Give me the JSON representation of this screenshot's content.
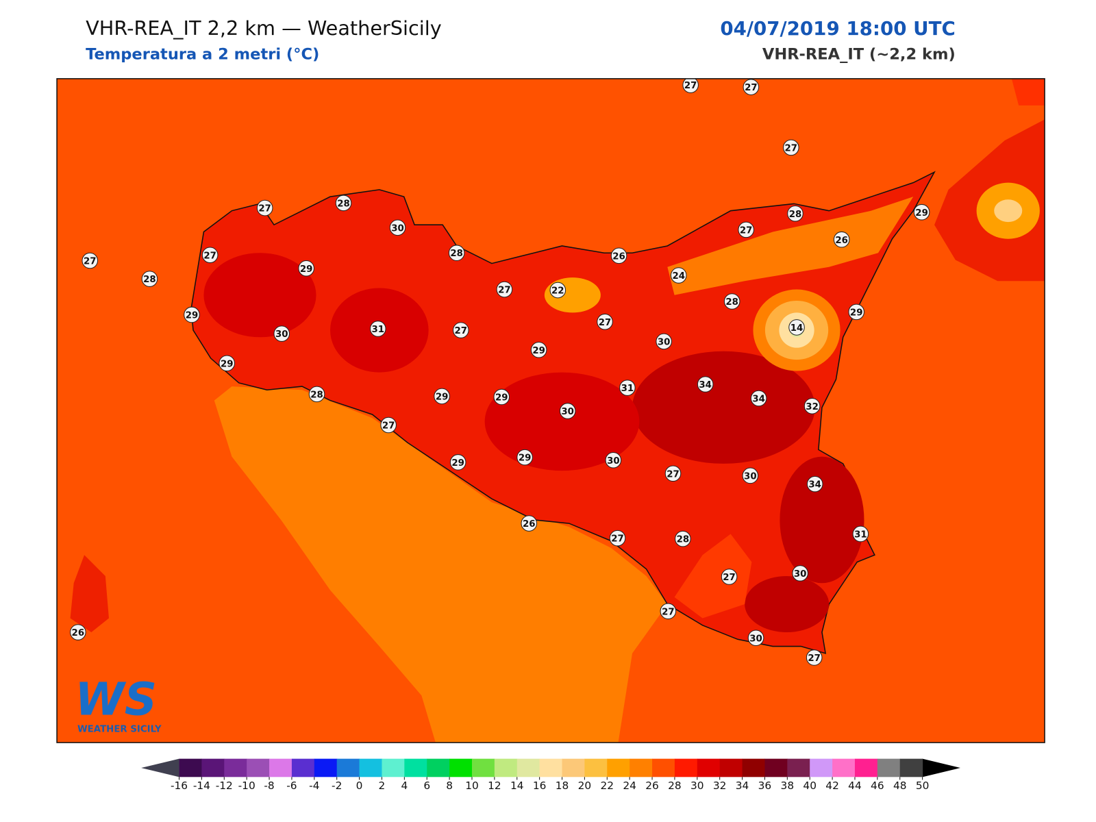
{
  "header": {
    "title": "VHR-REA_IT 2,2 km — WeatherSicily",
    "subtitle": "Temperatura a 2 metri (°C)",
    "datetime": "04/07/2019 18:00 UTC",
    "model": "VHR-REA_IT (~2,2 km)"
  },
  "stations": [
    27,
    27,
    27,
    28,
    29,
    27,
    26,
    26,
    24,
    28,
    29,
    14,
    27,
    28,
    30,
    28,
    27,
    29,
    27,
    28,
    29,
    30,
    31,
    27,
    22,
    27,
    27,
    29,
    30,
    29,
    28,
    29,
    29,
    30,
    31,
    34,
    34,
    32,
    27,
    29,
    29,
    30,
    27,
    30,
    34,
    26,
    27,
    28,
    31,
    30,
    27,
    27,
    30,
    27,
    26
  ],
  "colorbar": {
    "ticks": [
      -16,
      -14,
      -12,
      -10,
      -8,
      -6,
      -4,
      -2,
      0,
      2,
      4,
      6,
      8,
      10,
      12,
      14,
      16,
      18,
      20,
      22,
      24,
      26,
      28,
      30,
      32,
      34,
      36,
      38,
      40,
      42,
      44,
      46,
      48,
      50
    ],
    "colors": [
      "#3d0a50",
      "#5a1577",
      "#7a2c9a",
      "#9b4fb5",
      "#dc78e8",
      "#5a2fd0",
      "#0a1af5",
      "#1b7ad8",
      "#14c0e0",
      "#5ef0d0",
      "#00e0a0",
      "#00d060",
      "#00e000",
      "#70e040",
      "#c0ea80",
      "#e0e8a0",
      "#ffe0a0",
      "#fcc878",
      "#fcc040",
      "#ffa000",
      "#ff8000",
      "#ff5000",
      "#ff1a00",
      "#e00000",
      "#c00000",
      "#900000",
      "#700020",
      "#7a2050",
      "#d098f8",
      "#ff70c8",
      "#ff2090",
      "#808080",
      "#404040"
    ],
    "under_color": "#404050",
    "over_color": "#000000"
  },
  "logo": {
    "mark": "WS",
    "text": "WEATHER SICILY"
  }
}
